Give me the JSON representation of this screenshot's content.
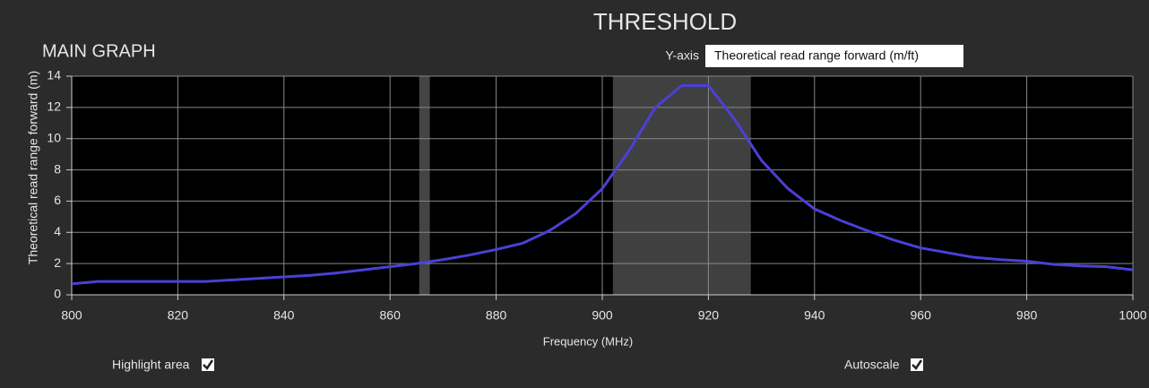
{
  "header": {
    "title": "THRESHOLD",
    "section": "MAIN GRAPH",
    "y_axis_label": "Y-axis",
    "y_axis_selection": "Theoretical read range forward (m/ft)"
  },
  "controls": {
    "highlight_area": {
      "label": "Highlight area",
      "checked": true
    },
    "autoscale": {
      "label": "Autoscale",
      "checked": true
    }
  },
  "chart_data": {
    "type": "line",
    "x_label": "Frequency (MHz)",
    "y_label": "Theoretical read range forward (m)",
    "x": [
      800,
      805,
      810,
      815,
      820,
      825,
      830,
      835,
      840,
      845,
      850,
      855,
      860,
      865,
      870,
      875,
      880,
      885,
      890,
      895,
      900,
      905,
      910,
      915,
      920,
      925,
      930,
      935,
      940,
      945,
      950,
      955,
      960,
      965,
      970,
      975,
      980,
      985,
      990,
      995,
      1000
    ],
    "values": [
      0.7,
      0.85,
      0.85,
      0.85,
      0.85,
      0.85,
      0.95,
      1.05,
      1.15,
      1.25,
      1.4,
      1.6,
      1.8,
      2.0,
      2.25,
      2.55,
      2.9,
      3.3,
      4.1,
      5.2,
      6.8,
      9.2,
      12.0,
      13.4,
      13.4,
      11.2,
      8.6,
      6.8,
      5.5,
      4.75,
      4.1,
      3.5,
      3.0,
      2.7,
      2.4,
      2.25,
      2.15,
      1.95,
      1.85,
      1.8,
      1.6
    ],
    "color": "#4b40d6",
    "highlights": [
      {
        "range": [
          865.5,
          867.5
        ],
        "color": "#444444"
      },
      {
        "range": [
          902,
          928
        ],
        "color": "#404040"
      }
    ],
    "xlim": [
      800,
      1000
    ],
    "xticks": [
      800,
      820,
      840,
      860,
      880,
      900,
      920,
      940,
      960,
      980,
      1000
    ],
    "ylim": [
      0,
      14
    ],
    "yticks": [
      0,
      2,
      4,
      6,
      8,
      10,
      12,
      14
    ],
    "grid": true
  }
}
